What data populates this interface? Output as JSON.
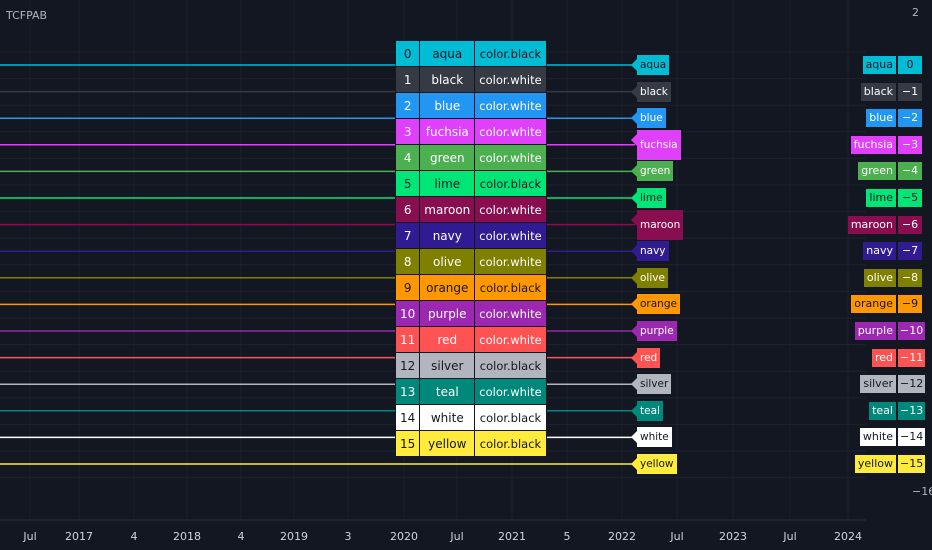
{
  "chart_data": {
    "type": "line",
    "title": "TCFPAB",
    "xlabel": "",
    "ylabel": "",
    "grid": true,
    "x_tick_labels": [
      "Jul",
      "2017",
      "4",
      "2018",
      "4",
      "2019",
      "3",
      "2020",
      "Jul",
      "2021",
      "5",
      "2022",
      "Jul",
      "2023",
      "Jul",
      "2024"
    ],
    "y_range": [
      -16,
      2
    ],
    "y_tick_labels": [
      "2",
      "−16"
    ],
    "series": [
      {
        "index": "0",
        "name": "aqua",
        "value": 0,
        "value_label": "0",
        "text_color": "color.black",
        "color": "#00bcd4",
        "fg": "#131722"
      },
      {
        "index": "1",
        "name": "black",
        "value": -1,
        "value_label": "−1",
        "text_color": "color.white",
        "color": "#363a45",
        "fg": "#ffffff"
      },
      {
        "index": "2",
        "name": "blue",
        "value": -2,
        "value_label": "−2",
        "text_color": "color.white",
        "color": "#2196f3",
        "fg": "#ffffff"
      },
      {
        "index": "3",
        "name": "fuchsia",
        "value": -3,
        "value_label": "−3",
        "text_color": "color.white",
        "color": "#e040fb",
        "fg": "#ffffff"
      },
      {
        "index": "4",
        "name": "green",
        "value": -4,
        "value_label": "−4",
        "text_color": "color.white",
        "color": "#4caf50",
        "fg": "#ffffff"
      },
      {
        "index": "5",
        "name": "lime",
        "value": -5,
        "value_label": "−5",
        "text_color": "color.black",
        "color": "#00e676",
        "fg": "#131722"
      },
      {
        "index": "6",
        "name": "maroon",
        "value": -6,
        "value_label": "−6",
        "text_color": "color.white",
        "color": "#880e4f",
        "fg": "#ffffff"
      },
      {
        "index": "7",
        "name": "navy",
        "value": -7,
        "value_label": "−7",
        "text_color": "color.white",
        "color": "#311b92",
        "fg": "#ffffff"
      },
      {
        "index": "8",
        "name": "olive",
        "value": -8,
        "value_label": "−8",
        "text_color": "color.white",
        "color": "#808000",
        "fg": "#ffffff"
      },
      {
        "index": "9",
        "name": "orange",
        "value": -9,
        "value_label": "−9",
        "text_color": "color.black",
        "color": "#ff9800",
        "fg": "#131722"
      },
      {
        "index": "10",
        "name": "purple",
        "value": -10,
        "value_label": "−10",
        "text_color": "color.white",
        "color": "#9c27b0",
        "fg": "#ffffff"
      },
      {
        "index": "11",
        "name": "red",
        "value": -11,
        "value_label": "−11",
        "text_color": "color.white",
        "color": "#ff5252",
        "fg": "#ffffff"
      },
      {
        "index": "12",
        "name": "silver",
        "value": -12,
        "value_label": "−12",
        "text_color": "color.black",
        "color": "#b2b5be",
        "fg": "#131722"
      },
      {
        "index": "13",
        "name": "teal",
        "value": -13,
        "value_label": "−13",
        "text_color": "color.white",
        "color": "#00897b",
        "fg": "#ffffff"
      },
      {
        "index": "14",
        "name": "white",
        "value": -14,
        "value_label": "−14",
        "text_color": "color.black",
        "color": "#ffffff",
        "fg": "#131722"
      },
      {
        "index": "15",
        "name": "yellow",
        "value": -15,
        "value_label": "−15",
        "text_color": "color.black",
        "color": "#ffeb3b",
        "fg": "#131722"
      }
    ]
  }
}
